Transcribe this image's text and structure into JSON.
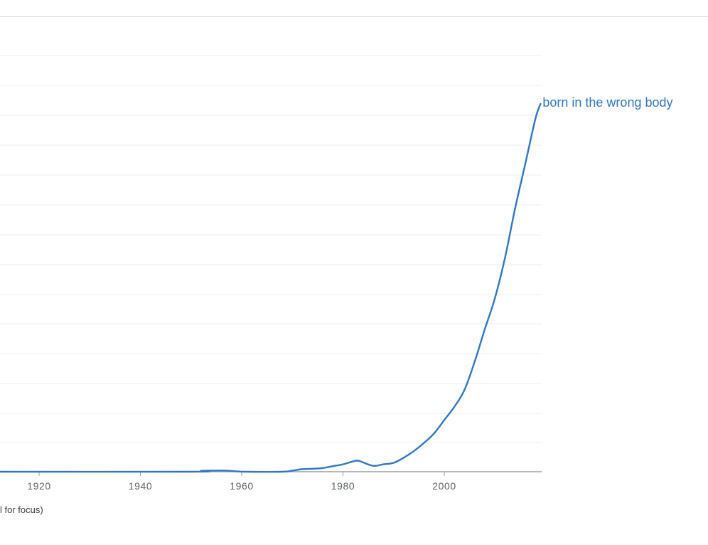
{
  "colors": {
    "series": "#2e78c7",
    "grid": "#ececec",
    "axis": "#9aa0a6",
    "tick_text": "#5f6368"
  },
  "footnote": "l for focus)",
  "chart_data": {
    "type": "line",
    "title": "",
    "xlabel": "",
    "ylabel": "",
    "x_ticks": [
      1920,
      1940,
      1960,
      1980,
      2000
    ],
    "xlim": [
      1912.5,
      2019
    ],
    "ylim": [
      0,
      100
    ],
    "grid": true,
    "legend": "inline-end-of-line",
    "series": [
      {
        "name": "born in the wrong body",
        "x": [
          1912,
          1950,
          1952,
          1954,
          1957,
          1959,
          1961,
          1968,
          1970,
          1972,
          1974,
          1976,
          1978,
          1980,
          1982,
          1983,
          1984,
          1986,
          1988,
          1990,
          1992,
          1994,
          1996,
          1998,
          2000,
          2002,
          2004,
          2006,
          2008,
          2010,
          2012,
          2014,
          2016,
          2018,
          2019
        ],
        "y": [
          0,
          0,
          0.25,
          0.3,
          0.3,
          0.1,
          0,
          0,
          0.3,
          0.7,
          0.8,
          1,
          1.5,
          2,
          2.8,
          3,
          2.5,
          1.6,
          2,
          2.4,
          3.8,
          5.6,
          7.8,
          10.4,
          14,
          17.6,
          22.2,
          29.8,
          38.6,
          47,
          58,
          71.4,
          83.4,
          95.6,
          99.6
        ]
      }
    ]
  }
}
